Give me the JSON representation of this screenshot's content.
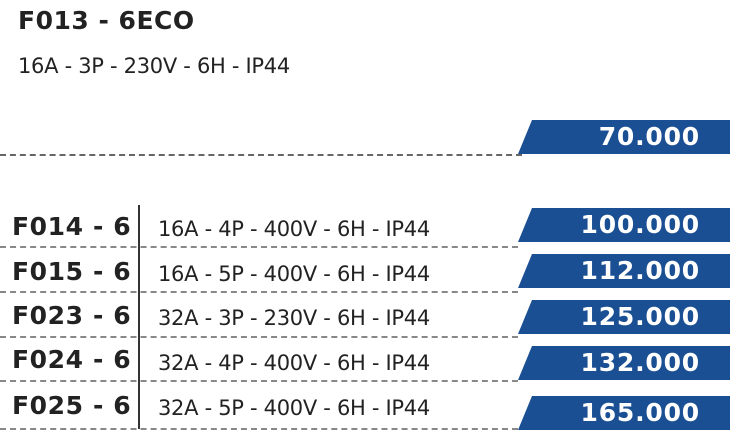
{
  "featured": {
    "code": "F013 - 6ECO",
    "spec": "16A - 3P - 230V - 6H - IP44",
    "price": "70.000"
  },
  "products": [
    {
      "code": "F014 - 6",
      "spec": "16A - 4P - 400V - 6H - IP44",
      "price": "100.000"
    },
    {
      "code": "F015 - 6",
      "spec": "16A - 5P - 400V - 6H - IP44",
      "price": "112.000"
    },
    {
      "code": "F023 - 6",
      "spec": "32A - 3P - 230V - 6H - IP44",
      "price": "125.000"
    },
    {
      "code": "F024 - 6",
      "spec": "32A - 4P - 400V - 6H - IP44",
      "price": "132.000"
    },
    {
      "code": "F025 - 6",
      "spec": "32A - 5P - 400V - 6H - IP44",
      "price": "165.000"
    }
  ],
  "colors": {
    "price_tag": "#1b4f93",
    "text": "#222222"
  }
}
